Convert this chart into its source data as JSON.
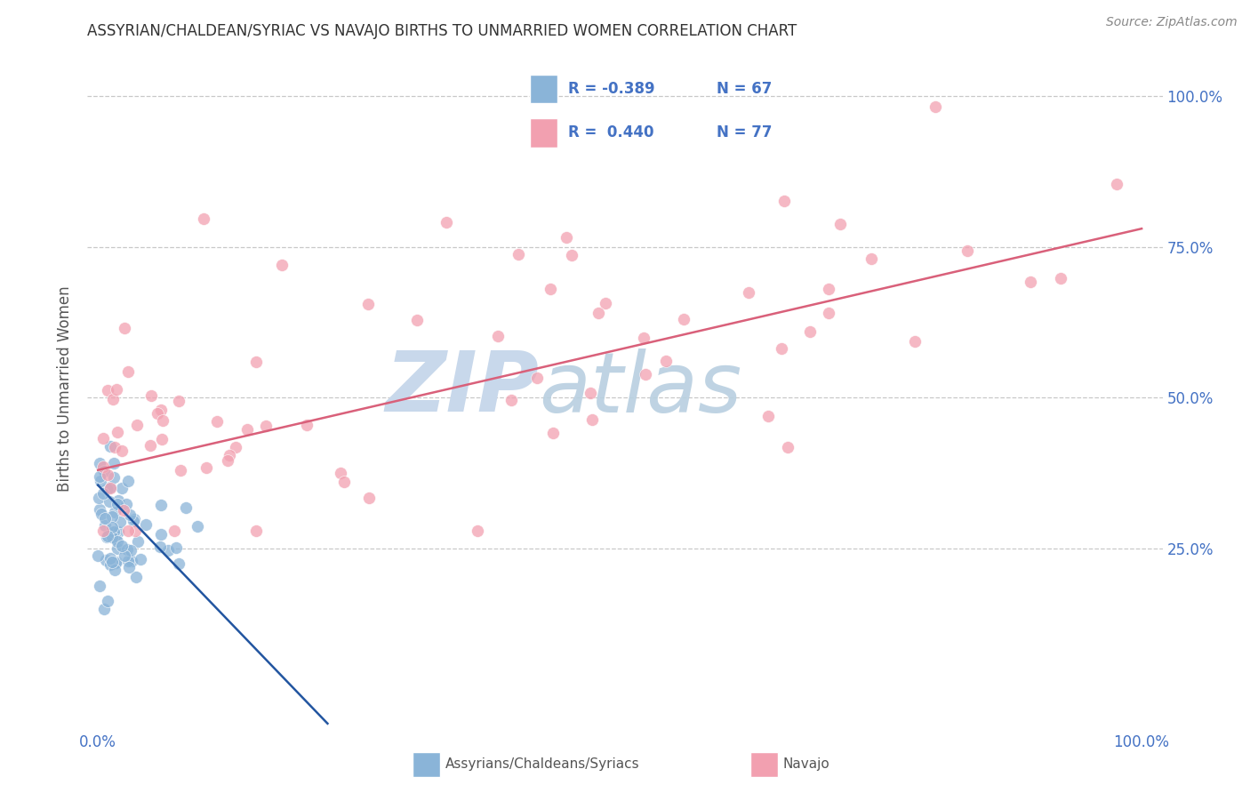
{
  "title": "ASSYRIAN/CHALDEAN/SYRIAC VS NAVAJO BIRTHS TO UNMARRIED WOMEN CORRELATION CHART",
  "source": "Source: ZipAtlas.com",
  "ylabel": "Births to Unmarried Women",
  "legend_label1": "Assyrians/Chaldeans/Syriacs",
  "legend_label2": "Navajo",
  "color_blue": "#8ab4d8",
  "color_pink": "#f2a0b0",
  "color_blue_line": "#2255a0",
  "color_pink_line": "#d9607a",
  "color_grid": "#c8c8c8",
  "background": "#ffffff",
  "blue_R": "R = -0.389",
  "blue_N": "N = 67",
  "pink_R": "R =  0.440",
  "pink_N": "N = 77",
  "ytick_vals": [
    0.25,
    0.5,
    0.75,
    1.0
  ],
  "ytick_labels": [
    "25.0%",
    "50.0%",
    "75.0%",
    "100.0%"
  ],
  "xlim": [
    -0.01,
    1.02
  ],
  "ylim": [
    -0.05,
    1.08
  ],
  "pink_line_x0": 0.0,
  "pink_line_y0": 0.38,
  "pink_line_x1": 1.0,
  "pink_line_y1": 0.78,
  "blue_line_x0": 0.0,
  "blue_line_y0": 0.355,
  "blue_line_x1": 0.22,
  "blue_line_y1": -0.04
}
